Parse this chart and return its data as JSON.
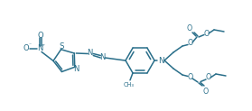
{
  "bg_color": "#ffffff",
  "lc": "#2a6f8a",
  "lw": 1.1,
  "fs": 5.2,
  "figsize": [
    2.79,
    1.23
  ],
  "dpi": 100,
  "xlim": [
    0,
    279
  ],
  "ylim": [
    0,
    123
  ]
}
